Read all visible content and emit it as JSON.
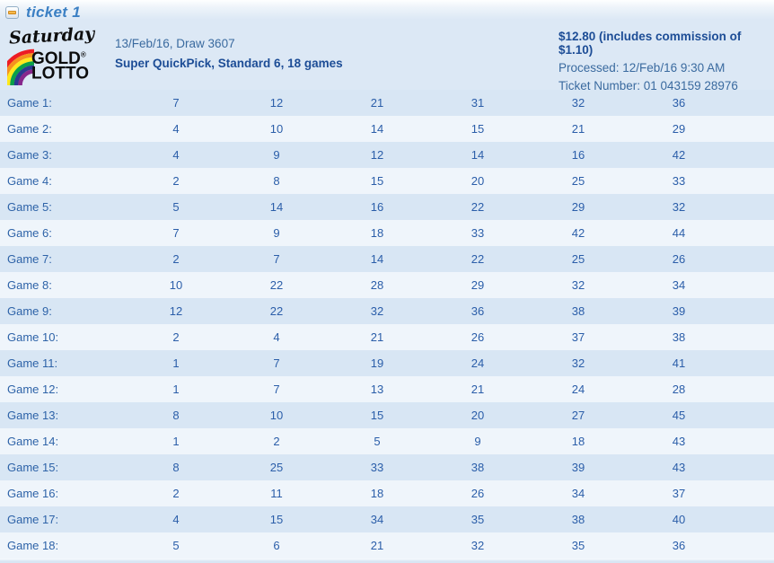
{
  "header": {
    "title": "ticket 1",
    "collapse_icon": "minus-icon",
    "logo": {
      "day": "Saturday",
      "brand_line1": "GOLD",
      "brand_line2": "LOTTO",
      "registered_mark": "®",
      "icon": "rainbow-icon"
    },
    "draw_line": "13/Feb/16, Draw 3607",
    "type_line": "Super QuickPick, Standard 6, 18 games",
    "price_line": "$12.80 (includes commission of $1.10)",
    "processed_line": "Processed: 12/Feb/16 9:30 AM",
    "ticket_number_line": "Ticket Number: 01 043159 28976"
  },
  "colors": {
    "page_bg": "#dce8f5",
    "row_odd": "#d8e6f4",
    "row_even": "#eff5fb",
    "text_blue": "#2b5ea9",
    "bold_blue": "#1d4d96",
    "title_blue": "#3c80c4",
    "minus_orange": "#f2a72e",
    "rainbow": [
      "#ed1c24",
      "#f6921e",
      "#ffe81d",
      "#0aa04a",
      "#2b3990",
      "#87278c"
    ]
  },
  "games": [
    {
      "label": "Game 1:",
      "numbers": [
        7,
        12,
        21,
        31,
        32,
        36
      ]
    },
    {
      "label": "Game 2:",
      "numbers": [
        4,
        10,
        14,
        15,
        21,
        29
      ]
    },
    {
      "label": "Game 3:",
      "numbers": [
        4,
        9,
        12,
        14,
        16,
        42
      ]
    },
    {
      "label": "Game 4:",
      "numbers": [
        2,
        8,
        15,
        20,
        25,
        33
      ]
    },
    {
      "label": "Game 5:",
      "numbers": [
        5,
        14,
        16,
        22,
        29,
        32
      ]
    },
    {
      "label": "Game 6:",
      "numbers": [
        7,
        9,
        18,
        33,
        42,
        44
      ]
    },
    {
      "label": "Game 7:",
      "numbers": [
        2,
        7,
        14,
        22,
        25,
        26
      ]
    },
    {
      "label": "Game 8:",
      "numbers": [
        10,
        22,
        28,
        29,
        32,
        34
      ]
    },
    {
      "label": "Game 9:",
      "numbers": [
        12,
        22,
        32,
        36,
        38,
        39
      ]
    },
    {
      "label": "Game 10:",
      "numbers": [
        2,
        4,
        21,
        26,
        37,
        38
      ]
    },
    {
      "label": "Game 11:",
      "numbers": [
        1,
        7,
        19,
        24,
        32,
        41
      ]
    },
    {
      "label": "Game 12:",
      "numbers": [
        1,
        7,
        13,
        21,
        24,
        28
      ]
    },
    {
      "label": "Game 13:",
      "numbers": [
        8,
        10,
        15,
        20,
        27,
        45
      ]
    },
    {
      "label": "Game 14:",
      "numbers": [
        1,
        2,
        5,
        9,
        18,
        43
      ]
    },
    {
      "label": "Game 15:",
      "numbers": [
        8,
        25,
        33,
        38,
        39,
        43
      ]
    },
    {
      "label": "Game 16:",
      "numbers": [
        2,
        11,
        18,
        26,
        34,
        37
      ]
    },
    {
      "label": "Game 17:",
      "numbers": [
        4,
        15,
        34,
        35,
        38,
        40
      ]
    },
    {
      "label": "Game 18:",
      "numbers": [
        5,
        6,
        21,
        32,
        35,
        36
      ]
    }
  ]
}
